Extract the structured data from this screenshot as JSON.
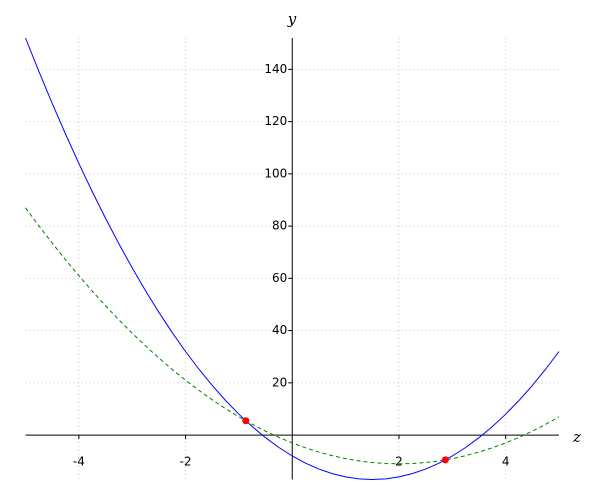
{
  "chart_data": {
    "type": "line",
    "xlabel": "z",
    "ylabel": "y",
    "xlim": [
      -5,
      5
    ],
    "ylim": [
      -17,
      152
    ],
    "xticks": [
      -4,
      -2,
      2,
      4
    ],
    "yticks": [
      20,
      40,
      60,
      80,
      100,
      120,
      140
    ],
    "grid": true,
    "x": [
      -5,
      -4.75,
      -4.5,
      -4.25,
      -4,
      -3.75,
      -3.5,
      -3.25,
      -3,
      -2.75,
      -2.5,
      -2.25,
      -2,
      -1.75,
      -1.5,
      -1.25,
      -1,
      -0.75,
      -0.5,
      -0.25,
      0,
      0.25,
      0.5,
      0.75,
      1,
      1.25,
      1.5,
      1.75,
      2,
      2.25,
      2.5,
      2.75,
      3,
      3.25,
      3.5,
      3.75,
      4,
      4.25,
      4.5,
      4.75,
      5
    ],
    "series": [
      {
        "color": "#0000ff",
        "dash": false,
        "values": [
          152,
          139.25,
          127,
          115.25,
          104,
          93.25,
          83,
          73.25,
          64,
          55.25,
          47,
          39.25,
          32,
          25.25,
          19,
          13.25,
          8,
          3.25,
          -1,
          -4.75,
          -8,
          -10.75,
          -13,
          -14.75,
          -16,
          -16.75,
          -17,
          -16.75,
          -16,
          -14.75,
          -13,
          -10.75,
          -8,
          -4.75,
          -1,
          3.25,
          8,
          13.25,
          19,
          25.25,
          32
        ]
      },
      {
        "color": "#008000",
        "dash": true,
        "values": [
          87,
          80.125,
          73.5,
          67.125,
          61,
          55.125,
          49.5,
          44.125,
          39,
          34.125,
          29.5,
          25.125,
          21,
          17.125,
          13.5,
          10.125,
          7,
          4.125,
          1.5,
          -0.875,
          -3,
          -4.875,
          -6.5,
          -7.875,
          -9,
          -9.875,
          -10.5,
          -10.875,
          -11,
          -10.875,
          -10.5,
          -9.875,
          -9,
          -7.875,
          -6.5,
          -4.875,
          -3,
          -0.875,
          1.5,
          4.125,
          7
        ]
      }
    ],
    "points": {
      "color": "#ff0000",
      "x": [
        -0.87,
        2.87
      ],
      "values": [
        5.49,
        -9.48
      ]
    }
  }
}
